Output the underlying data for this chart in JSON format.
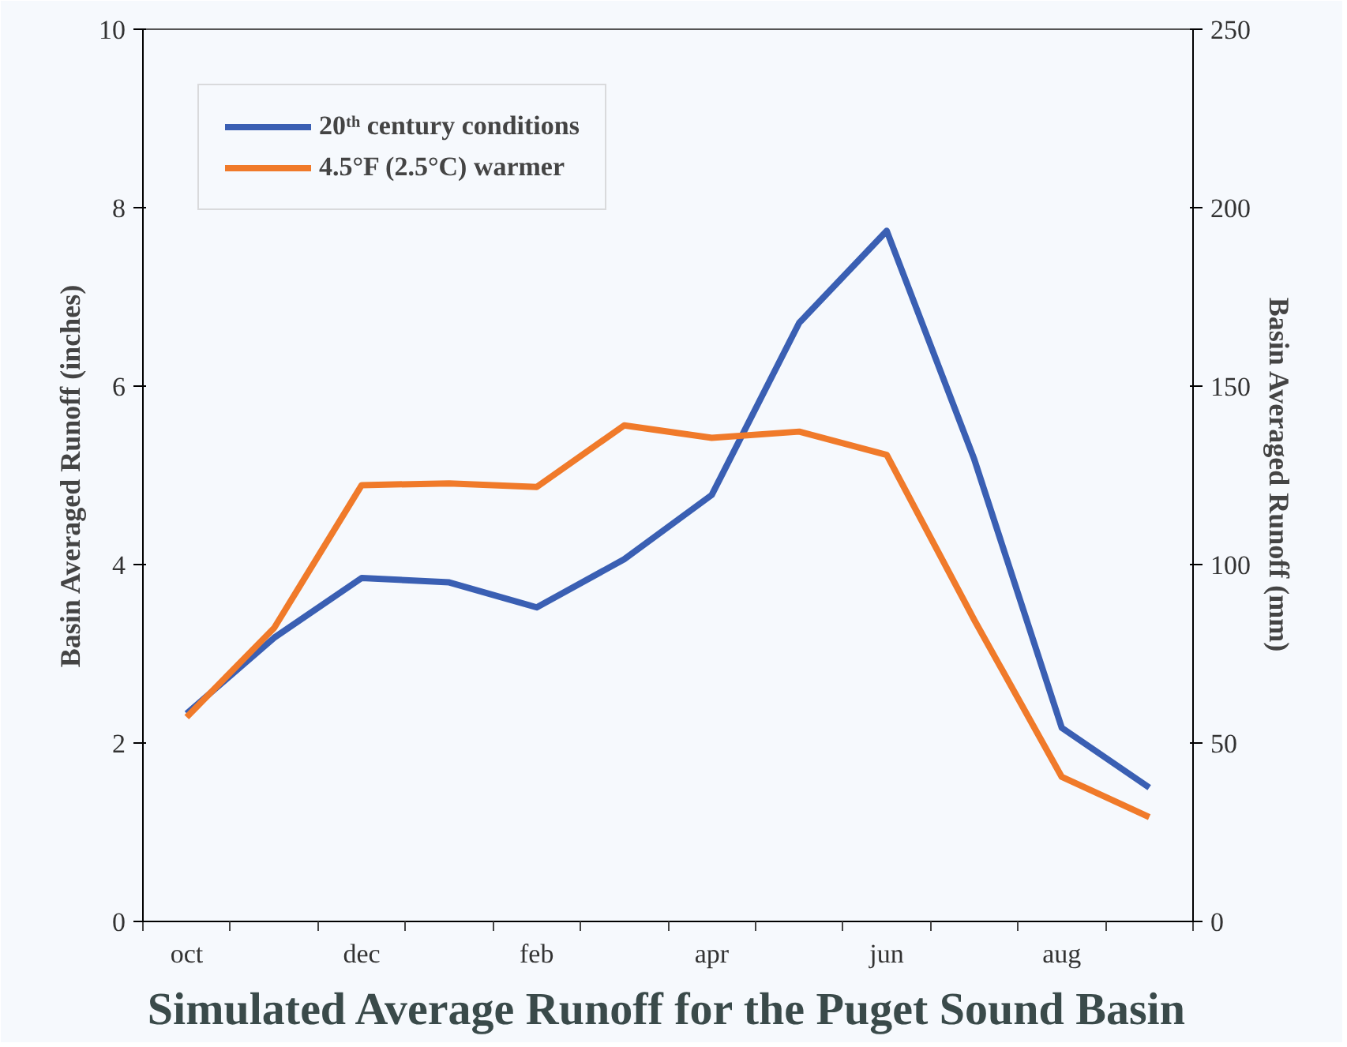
{
  "chart_data": {
    "type": "line",
    "title": "Simulated Average Runoff for the Puget Sound Basin",
    "ylabel": "Basin Averaged Runoff (inches)",
    "y2label": "Basin Averaged Runoff (mm)",
    "categories": [
      "oct",
      null,
      "dec",
      null,
      "feb",
      null,
      "apr",
      null,
      "jun",
      null,
      "aug",
      null
    ],
    "series": [
      {
        "name": "20ᵗʰ century conditions",
        "color": "#3a5fb3",
        "values": [
          2.33,
          3.18,
          3.85,
          3.8,
          3.52,
          4.06,
          4.78,
          6.71,
          7.74,
          5.18,
          2.17,
          1.5
        ]
      },
      {
        "name": "4.5°F (2.5°C) warmer",
        "color": "#f07a2a",
        "values": [
          2.29,
          3.29,
          4.89,
          4.91,
          4.87,
          5.56,
          5.42,
          5.49,
          5.23,
          3.38,
          1.62,
          1.17
        ]
      }
    ],
    "ylim": [
      0,
      10
    ],
    "yticks": [
      0,
      2,
      4,
      6,
      8,
      10
    ],
    "y2lim": [
      0,
      250
    ],
    "y2ticks": [
      0,
      50,
      100,
      150,
      200,
      250
    ],
    "grid": false,
    "legend": "top left",
    "marker": "none",
    "line_style": "solid"
  }
}
